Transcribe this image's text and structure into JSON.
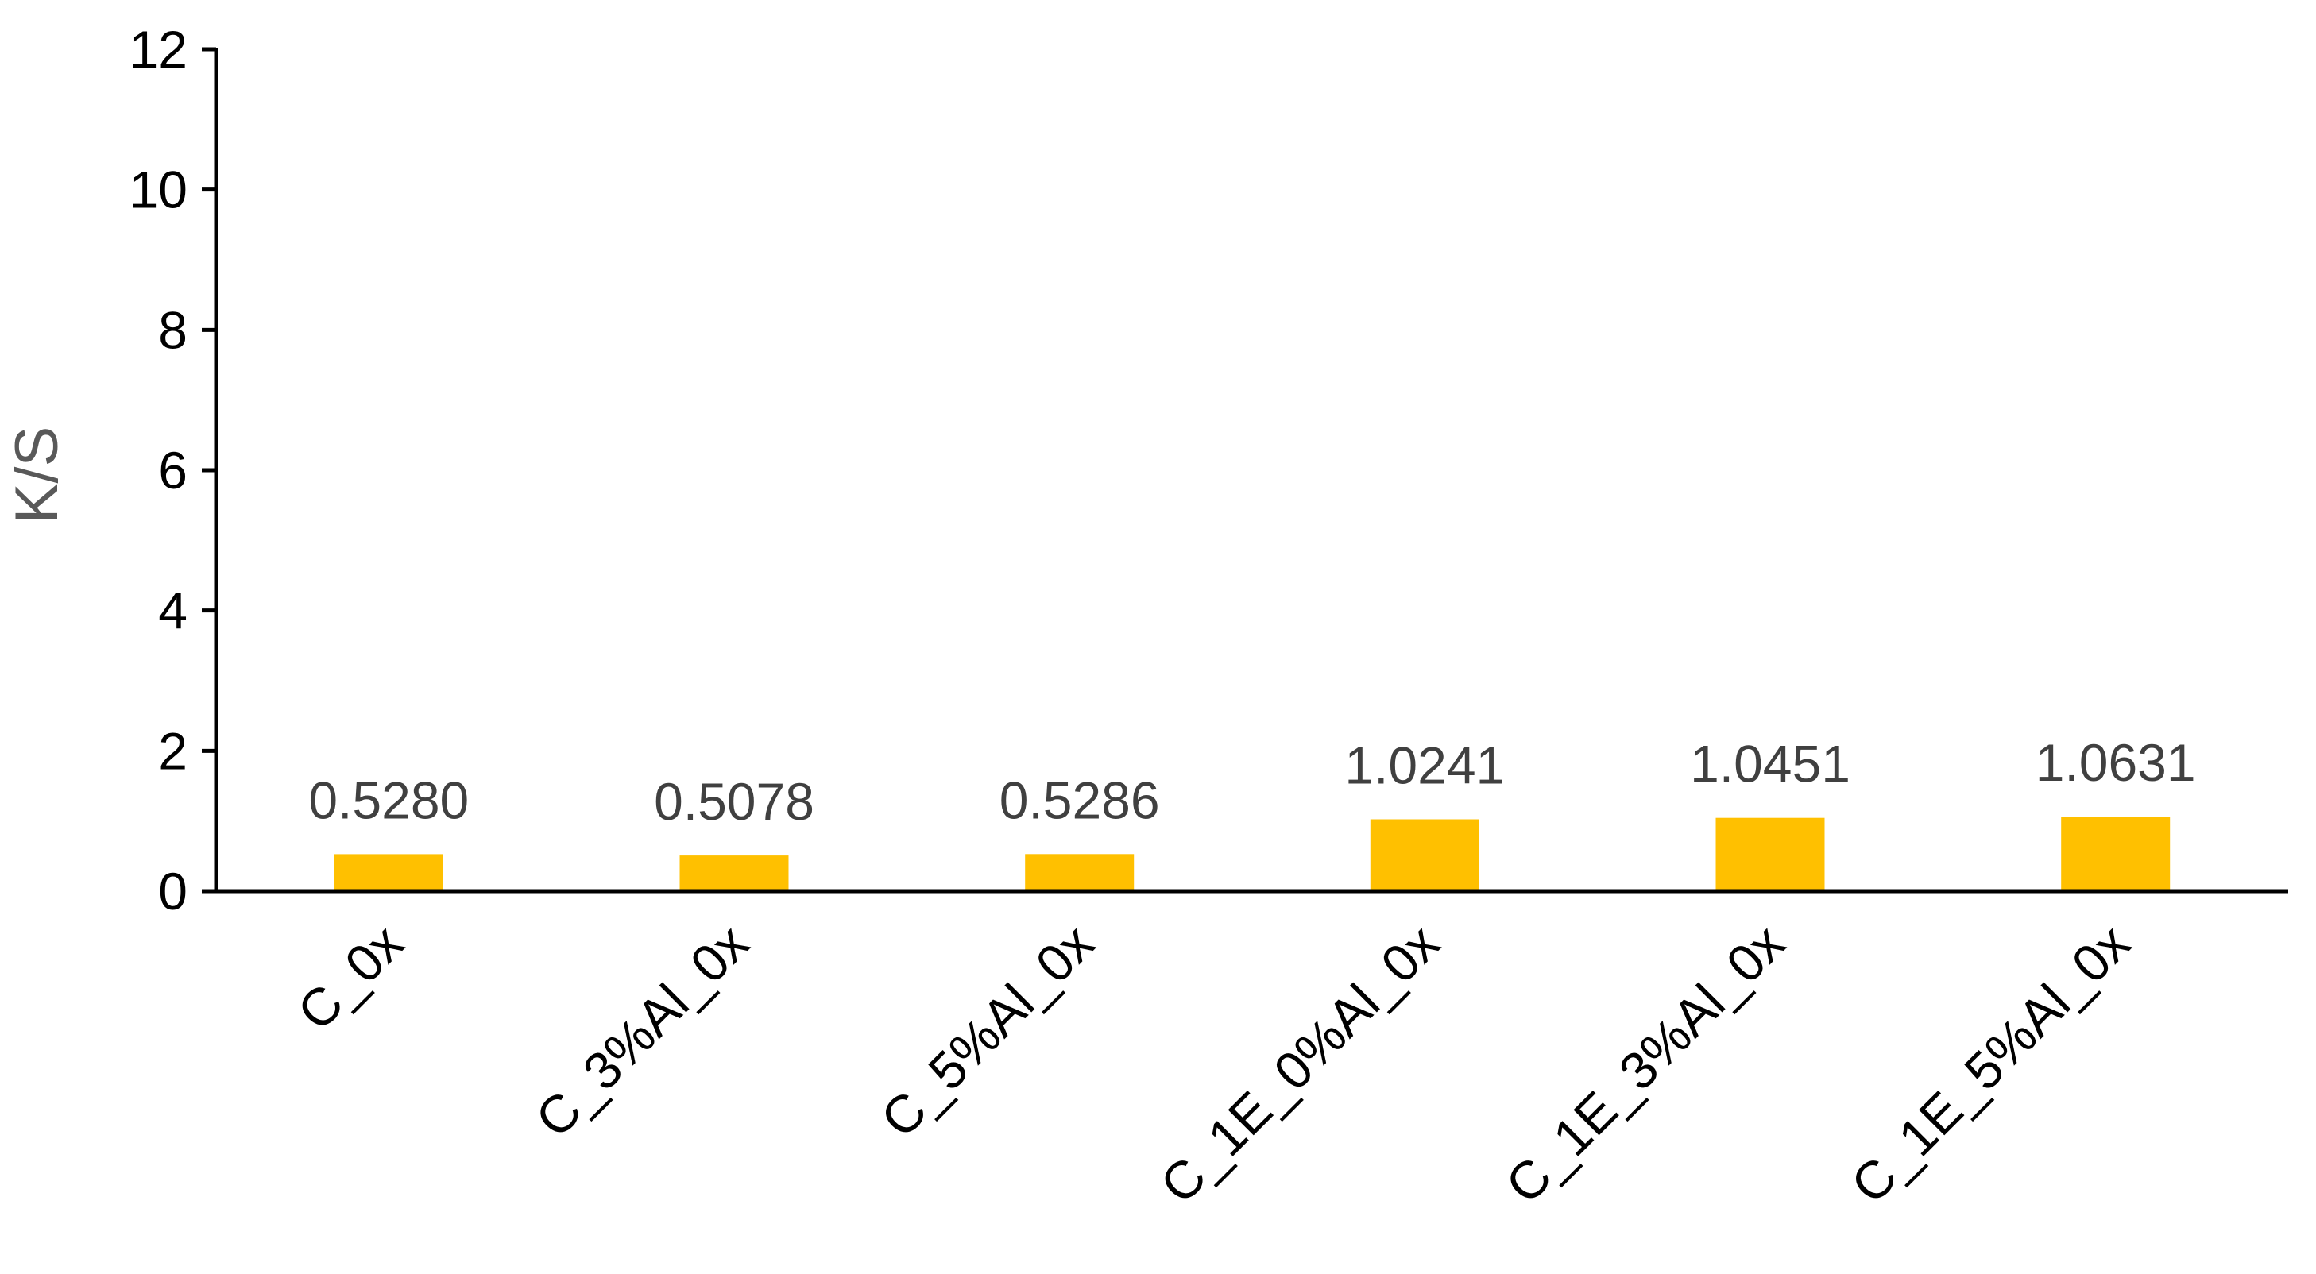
{
  "chart_data": {
    "type": "bar",
    "title": "",
    "xlabel": "",
    "ylabel": "K/S",
    "ylim": [
      0,
      12
    ],
    "yticks": [
      0,
      2,
      4,
      6,
      8,
      10,
      12
    ],
    "categories": [
      "C_0x",
      "C_3%Al_0x",
      "C_5%Al_0x",
      "C_1E_0%Al_0x",
      "C_1E_3%Al_0x",
      "C_1E_5%Al_0x"
    ],
    "values": [
      0.528,
      0.5078,
      0.5286,
      1.0241,
      1.0451,
      1.0631
    ],
    "data_labels": [
      "0.5280",
      "0.5078",
      "0.5286",
      "1.0241",
      "1.0451",
      "1.0631"
    ],
    "bar_color": "#FFC000",
    "axis_color": "#000000",
    "grid": false,
    "legend": "none"
  }
}
